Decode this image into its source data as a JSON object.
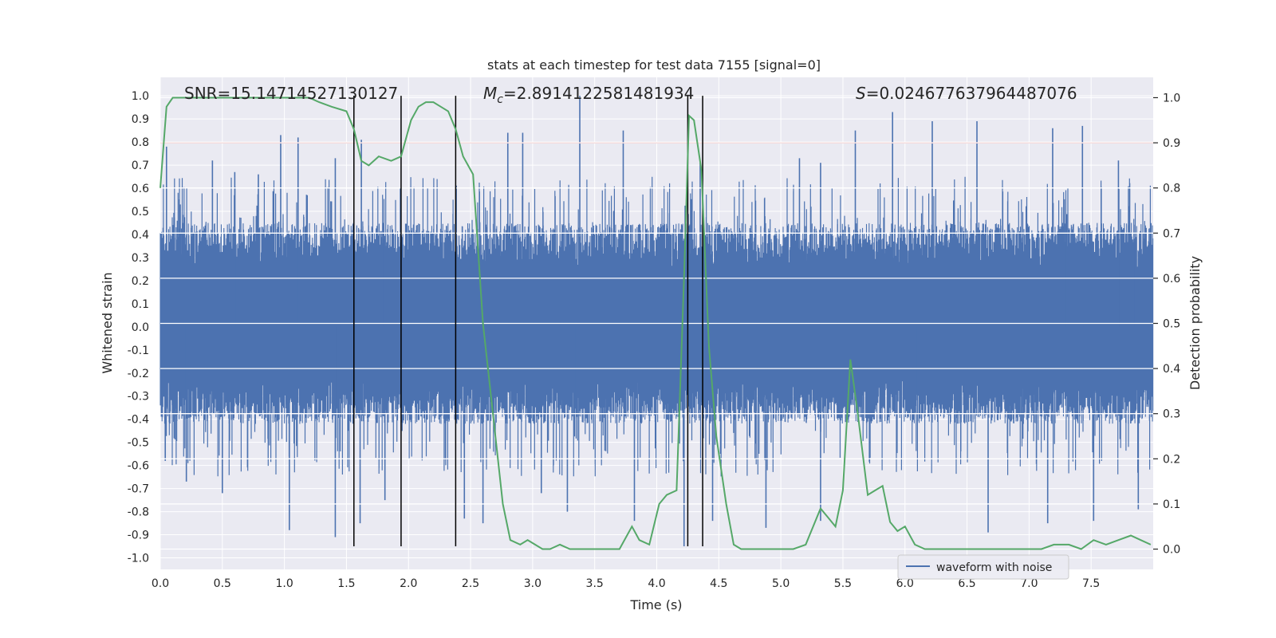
{
  "chart_data": {
    "type": "line",
    "title": "stats at each timestep for test data 7155 [signal=0]",
    "xlabel": "Time (s)",
    "ylabel_left": "Whitened strain",
    "ylabel_right": "Detection probability",
    "xlim": [
      0.0,
      8.0
    ],
    "ylim_left": [
      -1.05,
      1.08
    ],
    "ylim_right": [
      -0.045,
      1.045
    ],
    "x_ticks": [
      "0.0",
      "0.5",
      "1.0",
      "1.5",
      "2.0",
      "2.5",
      "3.0",
      "3.5",
      "4.0",
      "4.5",
      "5.0",
      "5.5",
      "6.0",
      "6.5",
      "7.0",
      "7.5"
    ],
    "y_left_ticks": [
      "1.0",
      "0.9",
      "0.8",
      "0.7",
      "0.6",
      "0.5",
      "0.4",
      "0.3",
      "0.2",
      "0.1",
      "0.0",
      "-0.1",
      "-0.2",
      "-0.3",
      "-0.4",
      "-0.5",
      "-0.6",
      "-0.7",
      "-0.8",
      "-0.9",
      "-1.0"
    ],
    "y_right_ticks": [
      "1.0",
      "0.9",
      "0.8",
      "0.7",
      "0.6",
      "0.5",
      "0.4",
      "0.3",
      "0.2",
      "0.1",
      "0.0"
    ],
    "grid": true,
    "annotations": {
      "snr": "SNR=15.14714527130127",
      "mc_symbol": "M",
      "mc_sub": "c",
      "mc_value": "=2.8914122581481934",
      "s_symbol": "S",
      "s_value": "=0.024677637964487076"
    },
    "threshold_right": 0.9,
    "vertical_lines_x": [
      1.56,
      1.94,
      2.38,
      4.25,
      4.37
    ],
    "vertical_lines_range": [
      -0.95,
      1.0
    ],
    "series": [
      {
        "name": "waveform with noise",
        "axis": "left",
        "color": "#4c72b0",
        "kind": "noise",
        "envelope_positive": 0.45,
        "envelope_negative": -0.42,
        "spikes": [
          {
            "x": 0.05,
            "y": 0.78
          },
          {
            "x": 0.42,
            "y": 0.72
          },
          {
            "x": 0.6,
            "y": 0.67
          },
          {
            "x": 0.79,
            "y": 0.66
          },
          {
            "x": 0.97,
            "y": 0.83
          },
          {
            "x": 1.11,
            "y": 0.82
          },
          {
            "x": 1.41,
            "y": 0.73
          },
          {
            "x": 1.62,
            "y": 0.81
          },
          {
            "x": 2.8,
            "y": 0.84
          },
          {
            "x": 2.92,
            "y": 0.84
          },
          {
            "x": 3.38,
            "y": 1.0
          },
          {
            "x": 3.73,
            "y": 0.85
          },
          {
            "x": 4.35,
            "y": 0.71
          },
          {
            "x": 5.15,
            "y": 0.73
          },
          {
            "x": 5.32,
            "y": 0.71
          },
          {
            "x": 5.6,
            "y": 0.85
          },
          {
            "x": 5.9,
            "y": 0.93
          },
          {
            "x": 6.22,
            "y": 0.89
          },
          {
            "x": 6.58,
            "y": 0.89
          },
          {
            "x": 7.19,
            "y": 0.86
          },
          {
            "x": 7.43,
            "y": 0.87
          },
          {
            "x": 7.72,
            "y": 0.72
          },
          {
            "x": 0.04,
            "y": -0.58
          },
          {
            "x": 0.21,
            "y": -0.67
          },
          {
            "x": 0.5,
            "y": -0.72
          },
          {
            "x": 1.04,
            "y": -0.88
          },
          {
            "x": 1.41,
            "y": -0.91
          },
          {
            "x": 1.61,
            "y": -0.85
          },
          {
            "x": 1.81,
            "y": -0.75
          },
          {
            "x": 2.45,
            "y": -0.83
          },
          {
            "x": 2.6,
            "y": -0.85
          },
          {
            "x": 3.07,
            "y": -0.72
          },
          {
            "x": 3.28,
            "y": -0.8
          },
          {
            "x": 3.82,
            "y": -0.84
          },
          {
            "x": 4.22,
            "y": -0.95
          },
          {
            "x": 4.45,
            "y": -0.84
          },
          {
            "x": 4.88,
            "y": -0.87
          },
          {
            "x": 5.32,
            "y": -0.84
          },
          {
            "x": 6.67,
            "y": -0.89
          },
          {
            "x": 7.15,
            "y": -0.85
          },
          {
            "x": 7.52,
            "y": -0.84
          },
          {
            "x": 7.88,
            "y": -0.79
          }
        ]
      },
      {
        "name": "detection probability",
        "axis": "right",
        "color": "#55a868",
        "x": [
          0.0,
          0.05,
          0.1,
          0.2,
          0.3,
          0.5,
          0.7,
          0.9,
          1.0,
          1.1,
          1.2,
          1.28,
          1.38,
          1.5,
          1.56,
          1.62,
          1.68,
          1.76,
          1.86,
          1.94,
          2.02,
          2.08,
          2.14,
          2.2,
          2.26,
          2.32,
          2.38,
          2.44,
          2.52,
          2.6,
          2.68,
          2.76,
          2.82,
          2.9,
          2.96,
          3.02,
          3.08,
          3.14,
          3.22,
          3.3,
          3.38,
          3.5,
          3.62,
          3.7,
          3.8,
          3.86,
          3.94,
          4.02,
          4.08,
          4.16,
          4.22,
          4.26,
          4.3,
          4.36,
          4.42,
          4.48,
          4.56,
          4.62,
          4.68,
          4.78,
          4.9,
          5.0,
          5.1,
          5.2,
          5.26,
          5.32,
          5.38,
          5.44,
          5.5,
          5.56,
          5.62,
          5.7,
          5.76,
          5.82,
          5.88,
          5.94,
          6.0,
          6.08,
          6.16,
          6.3,
          6.5,
          6.7,
          6.9,
          7.1,
          7.2,
          7.26,
          7.32,
          7.42,
          7.52,
          7.62,
          7.72,
          7.82,
          7.9,
          7.98
        ],
        "y": [
          0.8,
          0.98,
          1.0,
          1.0,
          1.0,
          1.0,
          1.0,
          1.0,
          1.0,
          1.0,
          1.0,
          0.99,
          0.98,
          0.97,
          0.93,
          0.86,
          0.85,
          0.87,
          0.86,
          0.87,
          0.95,
          0.98,
          0.99,
          0.99,
          0.98,
          0.97,
          0.93,
          0.87,
          0.83,
          0.5,
          0.3,
          0.1,
          0.02,
          0.01,
          0.02,
          0.01,
          0.0,
          0.0,
          0.01,
          0.0,
          0.0,
          0.0,
          0.0,
          0.0,
          0.05,
          0.02,
          0.01,
          0.1,
          0.12,
          0.13,
          0.6,
          0.96,
          0.95,
          0.84,
          0.45,
          0.25,
          0.1,
          0.01,
          0.0,
          0.0,
          0.0,
          0.0,
          0.0,
          0.01,
          0.05,
          0.09,
          0.07,
          0.05,
          0.13,
          0.42,
          0.3,
          0.12,
          0.13,
          0.14,
          0.06,
          0.04,
          0.05,
          0.01,
          0.0,
          0.0,
          0.0,
          0.0,
          0.0,
          0.0,
          0.01,
          0.01,
          0.01,
          0.0,
          0.02,
          0.01,
          0.02,
          0.03,
          0.02,
          0.01
        ]
      }
    ],
    "legend": {
      "placement": "bottom-right",
      "entries": [
        "waveform with noise"
      ]
    }
  }
}
